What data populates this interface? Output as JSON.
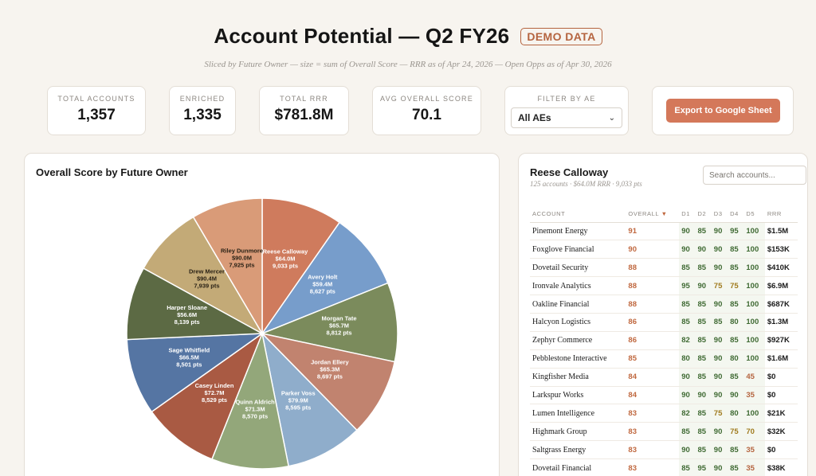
{
  "header": {
    "title": "Account Potential — Q2 FY26",
    "badge": "DEMO DATA",
    "subtitle": "Sliced by Future Owner — size = sum of Overall Score — RRR as of Apr 24, 2026 — Open Opps as of Apr 30, 2026"
  },
  "stats": {
    "total_accounts": {
      "label": "TOTAL ACCOUNTS",
      "value": "1,357"
    },
    "enriched": {
      "label": "ENRICHED",
      "value": "1,335"
    },
    "total_rrr": {
      "label": "TOTAL RRR",
      "value": "$781.8M"
    },
    "avg_score": {
      "label": "AVG OVERALL SCORE",
      "value": "70.1"
    }
  },
  "filter": {
    "label": "FILTER BY AE",
    "selected": "All AEs"
  },
  "export_button": "Export to Google Sheet",
  "chart_data": {
    "type": "pie",
    "title": "Overall Score by Future Owner",
    "slices": [
      {
        "name": "Reese Calloway",
        "rrr": "$64.0M",
        "pts": "9,033 pts",
        "value": 9033,
        "color": "#cf7b5d"
      },
      {
        "name": "Avery Holt",
        "rrr": "$59.4M",
        "pts": "8,627 pts",
        "value": 8627,
        "color": "#779dcb"
      },
      {
        "name": "Morgan Tate",
        "rrr": "$65.7M",
        "pts": "8,812 pts",
        "value": 8812,
        "color": "#7b8b5c"
      },
      {
        "name": "Jordan Ellery",
        "rrr": "$65.3M",
        "pts": "8,697 pts",
        "value": 8697,
        "color": "#c1836f"
      },
      {
        "name": "Parker Voss",
        "rrr": "$79.9M",
        "pts": "8,595 pts",
        "value": 8595,
        "color": "#8fadcb"
      },
      {
        "name": "Quinn Aldrich",
        "rrr": "$71.3M",
        "pts": "8,570 pts",
        "value": 8570,
        "color": "#93a77a"
      },
      {
        "name": "Casey Linden",
        "rrr": "$72.7M",
        "pts": "8,529 pts",
        "value": 8529,
        "color": "#a95a43"
      },
      {
        "name": "Sage Whitfield",
        "rrr": "$66.5M",
        "pts": "8,501 pts",
        "value": 8501,
        "color": "#5575a3"
      },
      {
        "name": "Harper Sloane",
        "rrr": "$56.6M",
        "pts": "8,139 pts",
        "value": 8139,
        "color": "#5c6a44"
      },
      {
        "name": "Drew Mercer",
        "rrr": "$90.4M",
        "pts": "7,939 pts",
        "value": 7939,
        "color": "#c3aa77"
      },
      {
        "name": "Riley Dunmore",
        "rrr": "$90.0M",
        "pts": "7,925 pts",
        "value": 7925,
        "color": "#d99b78"
      }
    ]
  },
  "detail": {
    "owner": "Reese Calloway",
    "summary": "125 accounts · $64.0M RRR · 9,033 pts",
    "search_placeholder": "Search accounts...",
    "columns": [
      "ACCOUNT",
      "OVERALL",
      "D1",
      "D2",
      "D3",
      "D4",
      "D5",
      "RRR"
    ],
    "rows": [
      [
        "Pinemont Energy",
        "91",
        "90",
        "85",
        "90",
        "95",
        "100",
        "$1.5M"
      ],
      [
        "Foxglove Financial",
        "90",
        "90",
        "90",
        "90",
        "85",
        "100",
        "$153K"
      ],
      [
        "Dovetail Security",
        "88",
        "85",
        "85",
        "90",
        "85",
        "100",
        "$410K"
      ],
      [
        "Ironvale Analytics",
        "88",
        "95",
        "90",
        "75",
        "75",
        "100",
        "$6.9M"
      ],
      [
        "Oakline Financial",
        "88",
        "85",
        "85",
        "90",
        "85",
        "100",
        "$687K"
      ],
      [
        "Halcyon Logistics",
        "86",
        "85",
        "85",
        "85",
        "80",
        "100",
        "$1.3M"
      ],
      [
        "Zephyr Commerce",
        "86",
        "82",
        "85",
        "90",
        "85",
        "100",
        "$927K"
      ],
      [
        "Pebblestone Interactive",
        "85",
        "80",
        "85",
        "90",
        "80",
        "100",
        "$1.6M"
      ],
      [
        "Kingfisher Media",
        "84",
        "90",
        "85",
        "90",
        "85",
        "45",
        "$0"
      ],
      [
        "Larkspur Works",
        "84",
        "90",
        "90",
        "90",
        "90",
        "35",
        "$0"
      ],
      [
        "Lumen Intelligence",
        "83",
        "82",
        "85",
        "75",
        "80",
        "100",
        "$21K"
      ],
      [
        "Highmark Group",
        "83",
        "85",
        "85",
        "90",
        "75",
        "70",
        "$32K"
      ],
      [
        "Saltgrass Energy",
        "83",
        "90",
        "85",
        "90",
        "85",
        "35",
        "$0"
      ],
      [
        "Dovetail Financial",
        "83",
        "85",
        "95",
        "90",
        "85",
        "35",
        "$38K"
      ]
    ]
  }
}
